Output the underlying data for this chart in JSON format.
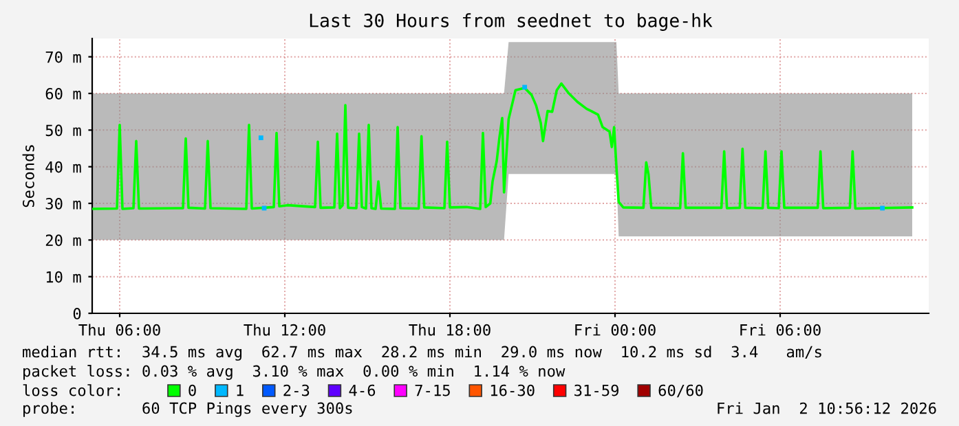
{
  "chart_data": {
    "type": "line",
    "title": "Last 30 Hours from seednet to bage-hk",
    "ylabel": "Seconds",
    "xlim": [
      "2026-01-01T05:00",
      "2026-01-02T11:24"
    ],
    "ylim": [
      0,
      75
    ],
    "xticks": [
      {
        "value": "2026-01-01T06:00",
        "label": "Thu 06:00"
      },
      {
        "value": "2026-01-01T12:00",
        "label": "Thu 12:00"
      },
      {
        "value": "2026-01-01T18:00",
        "label": "Thu 18:00"
      },
      {
        "value": "2026-01-02T00:00",
        "label": "Fri 00:00"
      },
      {
        "value": "2026-01-02T06:00",
        "label": "Fri 06:00"
      }
    ],
    "yticks": [
      0,
      {
        "value": 10,
        "label": "10 m"
      },
      {
        "value": 20,
        "label": "20 m"
      },
      {
        "value": 30,
        "label": "30 m"
      },
      {
        "value": 40,
        "label": "40 m"
      },
      {
        "value": 50,
        "label": "50 m"
      },
      {
        "value": 60,
        "label": "60 m"
      },
      {
        "value": 70,
        "label": "70 m"
      }
    ],
    "grid": true,
    "legend": "bottom",
    "marker": "none",
    "line_style": "solid",
    "series": [
      {
        "name": "0",
        "color": "#00ff00",
        "x": [
          "2026-01-01T05:00",
          "2026-01-01T05:54",
          "2026-01-01T06:00",
          "2026-01-01T06:06",
          "2026-01-01T06:30",
          "2026-01-01T06:36",
          "2026-01-01T06:42",
          "2026-01-01T08:18",
          "2026-01-01T08:24",
          "2026-01-01T08:30",
          "2026-01-01T09:06",
          "2026-01-01T09:12",
          "2026-01-01T09:18",
          "2026-01-01T10:36",
          "2026-01-01T10:42",
          "2026-01-01T10:48",
          "2026-01-01T11:36",
          "2026-01-01T11:42",
          "2026-01-01T11:48",
          "2026-01-01T12:06",
          "2026-01-01T13:06",
          "2026-01-01T13:12",
          "2026-01-01T13:18",
          "2026-01-01T13:48",
          "2026-01-01T13:54",
          "2026-01-01T14:00",
          "2026-01-01T14:06",
          "2026-01-01T14:12",
          "2026-01-01T14:18",
          "2026-01-01T14:36",
          "2026-01-01T14:42",
          "2026-01-01T14:48",
          "2026-01-01T14:57",
          "2026-01-01T15:03",
          "2026-01-01T15:09",
          "2026-01-01T15:18",
          "2026-01-01T15:24",
          "2026-01-01T15:30",
          "2026-01-01T16:00",
          "2026-01-01T16:06",
          "2026-01-01T16:12",
          "2026-01-01T16:52",
          "2026-01-01T16:58",
          "2026-01-01T17:04",
          "2026-01-01T17:48",
          "2026-01-01T17:54",
          "2026-01-01T18:00",
          "2026-01-01T18:36",
          "2026-01-01T19:06",
          "2026-01-01T19:12",
          "2026-01-01T19:18",
          "2026-01-01T19:28",
          "2026-01-01T19:33",
          "2026-01-01T19:42",
          "2026-01-01T19:48",
          "2026-01-01T19:54",
          "2026-01-01T19:58",
          "2026-01-01T20:08",
          "2026-01-01T20:23",
          "2026-01-01T20:43",
          "2026-01-01T20:58",
          "2026-01-01T21:08",
          "2026-01-01T21:18",
          "2026-01-01T21:23",
          "2026-01-01T21:33",
          "2026-01-01T21:43",
          "2026-01-01T21:53",
          "2026-01-01T22:03",
          "2026-01-01T22:18",
          "2026-01-01T22:38",
          "2026-01-01T22:58",
          "2026-01-01T23:08",
          "2026-01-01T23:23",
          "2026-01-01T23:33",
          "2026-01-01T23:48",
          "2026-01-01T23:53",
          "2026-01-01T23:58",
          "2026-01-02T00:03",
          "2026-01-02T00:08",
          "2026-01-02T00:18",
          "2026-01-02T01:02",
          "2026-01-02T01:08",
          "2026-01-02T01:13",
          "2026-01-02T01:19",
          "2026-01-02T02:22",
          "2026-01-02T02:28",
          "2026-01-02T02:34",
          "2026-01-02T03:52",
          "2026-01-02T03:58",
          "2026-01-02T04:04",
          "2026-01-02T04:32",
          "2026-01-02T04:38",
          "2026-01-02T04:44",
          "2026-01-02T05:22",
          "2026-01-02T05:28",
          "2026-01-02T05:34",
          "2026-01-02T05:57",
          "2026-01-02T06:03",
          "2026-01-02T06:09",
          "2026-01-02T07:22",
          "2026-01-02T07:28",
          "2026-01-02T07:34",
          "2026-01-02T08:32",
          "2026-01-02T08:38",
          "2026-01-02T08:44",
          "2026-01-02T10:48"
        ],
        "values": [
          28.5,
          28.6,
          51.4,
          28.5,
          28.7,
          47.0,
          28.6,
          28.7,
          47.7,
          28.8,
          28.6,
          47.0,
          28.7,
          28.5,
          51.4,
          28.6,
          29.0,
          49.2,
          29.2,
          29.5,
          29.0,
          46.8,
          28.8,
          28.9,
          49.0,
          28.7,
          29.5,
          56.8,
          28.8,
          28.7,
          49.0,
          29.0,
          28.6,
          51.4,
          28.7,
          28.5,
          36.0,
          28.6,
          28.5,
          50.8,
          28.7,
          28.6,
          48.3,
          28.9,
          28.7,
          46.8,
          28.9,
          29.0,
          28.5,
          49.2,
          29.0,
          30.0,
          36.0,
          41.5,
          48.0,
          53.3,
          33.0,
          53.0,
          60.9,
          61.5,
          59.6,
          56.7,
          52.0,
          47.0,
          55.2,
          55.0,
          60.9,
          62.7,
          60.2,
          57.7,
          55.8,
          55.2,
          54.2,
          50.8,
          49.6,
          45.4,
          50.8,
          40.0,
          30.4,
          28.9,
          28.8,
          41.2,
          37.9,
          28.8,
          28.7,
          43.7,
          28.8,
          28.8,
          44.2,
          28.7,
          28.8,
          44.9,
          28.8,
          28.7,
          44.2,
          28.8,
          28.7,
          44.2,
          28.8,
          28.8,
          44.2,
          28.7,
          28.8,
          44.2,
          28.6,
          28.9
        ],
        "lower": [
          20,
          20,
          20,
          20,
          20,
          20,
          20,
          20,
          20,
          20,
          20,
          20,
          20,
          20,
          20,
          20,
          20,
          20,
          20,
          20,
          20,
          20,
          20,
          20,
          20,
          20,
          20,
          20,
          20,
          20,
          20,
          20,
          20,
          20,
          20,
          20,
          20,
          20,
          20,
          20,
          20,
          20,
          20,
          20,
          20,
          20,
          20,
          20,
          20,
          20,
          20,
          20,
          20,
          20,
          20,
          20,
          20,
          38,
          38,
          38,
          38,
          38,
          38,
          38,
          38,
          38,
          38,
          38,
          38,
          38,
          38,
          38,
          38,
          38,
          38,
          38,
          38,
          38,
          21,
          21,
          21,
          21,
          21,
          21,
          21,
          21,
          21,
          21,
          21,
          21,
          21,
          21,
          21,
          21,
          21,
          21,
          21,
          21,
          21,
          21,
          21,
          21,
          21,
          21,
          21,
          21
        ],
        "upper": [
          60,
          60,
          60,
          60,
          60,
          60,
          60,
          60,
          60,
          60,
          60,
          60,
          60,
          60,
          60,
          60,
          60,
          60,
          60,
          60,
          60,
          60,
          60,
          60,
          60,
          60,
          60,
          60,
          60,
          60,
          60,
          60,
          60,
          60,
          60,
          60,
          60,
          60,
          60,
          60,
          60,
          60,
          60,
          60,
          60,
          60,
          60,
          60,
          60,
          60,
          60,
          60,
          60,
          60,
          60,
          60,
          60,
          74,
          74,
          74,
          74,
          74,
          74,
          74,
          74,
          74,
          74,
          74,
          74,
          74,
          74,
          74,
          74,
          74,
          74,
          74,
          74,
          74,
          60,
          60,
          60,
          60,
          60,
          60,
          60,
          60,
          60,
          60,
          60,
          60,
          60,
          60,
          60,
          60,
          60,
          60,
          60,
          60,
          60,
          60,
          60,
          60,
          60,
          60,
          60,
          60
        ]
      },
      {
        "name": "1",
        "color": "#00b8ff",
        "type": "scatter",
        "marker": "square",
        "x": [
          "2026-01-01T11:08",
          "2026-01-01T11:15",
          "2026-01-01T20:43",
          "2026-01-02T09:43"
        ],
        "values": [
          47.9,
          28.7,
          61.7,
          28.7
        ]
      },
      {
        "name": "2-3",
        "color": "#0059ff",
        "type": "scatter"
      },
      {
        "name": "4-6",
        "color": "#5e00ff",
        "type": "scatter"
      },
      {
        "name": "7-15",
        "color": "#ff00ff",
        "type": "scatter"
      },
      {
        "name": "16-30",
        "color": "#ff5500",
        "type": "scatter"
      },
      {
        "name": "31-59",
        "color": "#ff0000",
        "type": "scatter"
      },
      {
        "name": "60/60",
        "color": "#a10000",
        "type": "scatter"
      }
    ],
    "annotations": [
      "median rtt:  34.5 ms avg  62.7 ms max  28.2 ms min  29.0 ms now  10.2 ms sd  3.4   am/s",
      "packet loss: 0.03 % avg  3.10 % max  0.00 % min  1.14 % now",
      "loss color:",
      "probe:       60 TCP Pings every 300s",
      "Fri Jan  2 10:56:12 2026"
    ]
  }
}
